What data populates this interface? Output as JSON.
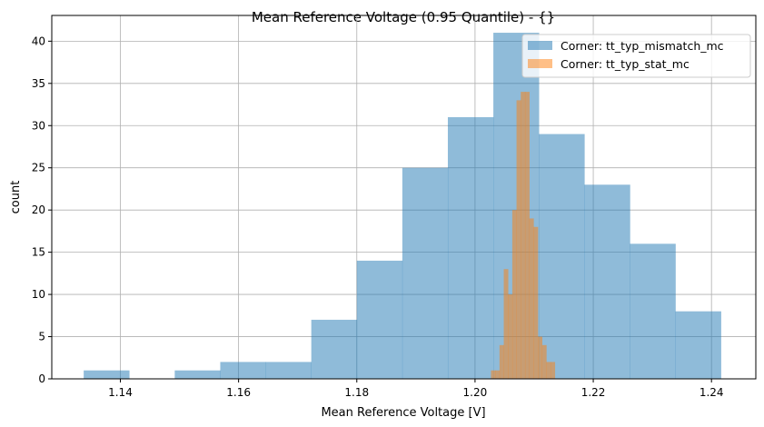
{
  "chart_data": {
    "type": "bar",
    "title": "Mean Reference Voltage (0.95 Quantile) - {}",
    "xlabel": "Mean Reference Voltage [V]",
    "ylabel": "count",
    "xlim": [
      1.1284,
      1.2475
    ],
    "ylim": [
      0,
      43.05
    ],
    "xticks": [
      "1.14",
      "1.16",
      "1.18",
      "1.20",
      "1.22",
      "1.24"
    ],
    "yticks": [
      "0",
      "5",
      "10",
      "15",
      "20",
      "25",
      "30",
      "35",
      "40"
    ],
    "grid": true,
    "legend_position": "top-right",
    "series": [
      {
        "name": "Corner: tt_typ_mismatch_mc",
        "color": "#8fbbd9",
        "bin_start": 1.1338,
        "bin_end": 1.2416,
        "counts": [
          1,
          0,
          1,
          2,
          2,
          7,
          14,
          25,
          31,
          41,
          29,
          23,
          16,
          8
        ]
      },
      {
        "name": "Corner: tt_typ_stat_mc",
        "color": "#ffbf86",
        "overlap_color": "#c69c72",
        "bin_start": 1.2027,
        "bin_end": 1.2135,
        "counts": [
          1,
          1,
          4,
          13,
          10,
          20,
          33,
          34,
          34,
          19,
          18,
          5,
          4,
          2,
          2
        ]
      }
    ]
  }
}
